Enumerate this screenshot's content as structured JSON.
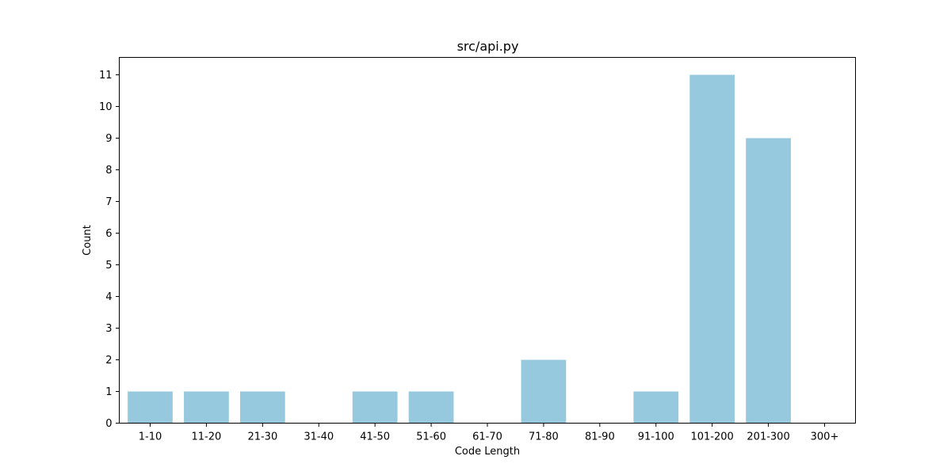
{
  "chart_data": {
    "type": "bar",
    "title": "src/api.py",
    "xlabel": "Code Length",
    "ylabel": "Count",
    "categories": [
      "1-10",
      "11-20",
      "21-30",
      "31-40",
      "41-50",
      "51-60",
      "61-70",
      "71-80",
      "81-90",
      "91-100",
      "101-200",
      "201-300",
      "300+"
    ],
    "values": [
      1,
      1,
      1,
      0,
      1,
      1,
      0,
      2,
      0,
      1,
      11,
      9,
      0
    ],
    "ylim": [
      0,
      11.55
    ],
    "yticks": [
      0,
      1,
      2,
      3,
      4,
      5,
      6,
      7,
      8,
      9,
      10,
      11
    ],
    "grid": false,
    "bar_color": "#96c9de"
  }
}
